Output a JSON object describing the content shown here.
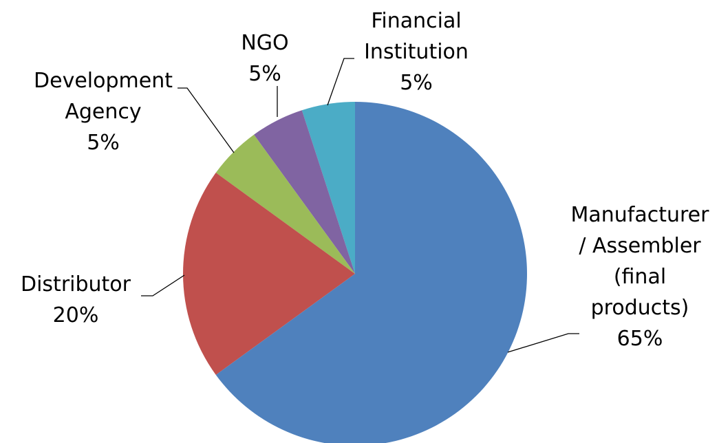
{
  "chart_data": {
    "type": "pie",
    "categories": [
      "Manufacturer / Assembler (final products)",
      "Distributor",
      "Development Agency",
      "NGO",
      "Financial Institution"
    ],
    "values": [
      65,
      20,
      5,
      5,
      5
    ],
    "value_labels": [
      "65%",
      "20%",
      "5%",
      "5%",
      "5%"
    ],
    "colors": [
      "#4f81bd",
      "#c0504d",
      "#9bbb59",
      "#8064a2",
      "#4bacc6"
    ]
  }
}
